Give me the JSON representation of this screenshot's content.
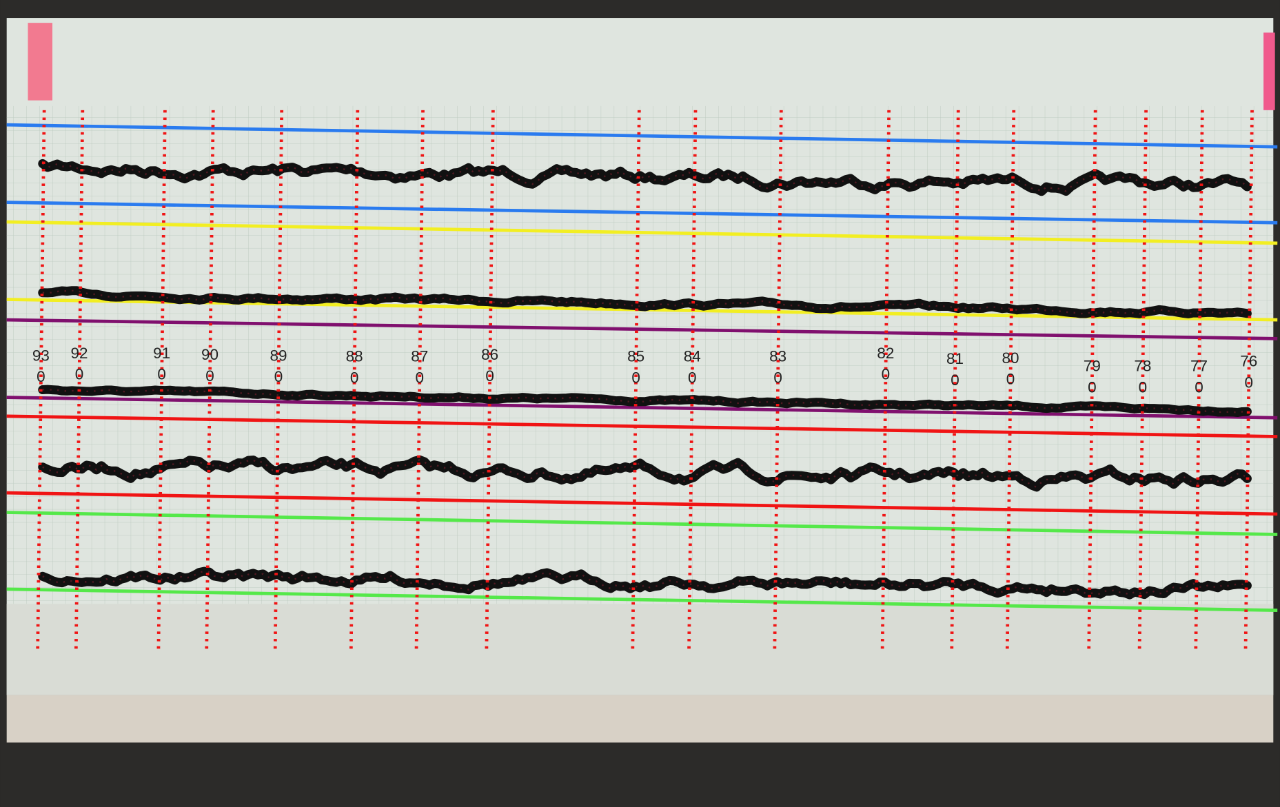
{
  "markers": [
    {
      "label": "93",
      "sub": "0"
    },
    {
      "label": "92",
      "sub": "0"
    },
    {
      "label": "91",
      "sub": "0"
    },
    {
      "label": "90",
      "sub": "0"
    },
    {
      "label": "89",
      "sub": "0"
    },
    {
      "label": "88",
      "sub": "0"
    },
    {
      "label": "87",
      "sub": "0"
    },
    {
      "label": "86",
      "sub": "0"
    },
    {
      "label": "85",
      "sub": "0"
    },
    {
      "label": "84",
      "sub": "0"
    },
    {
      "label": "83",
      "sub": "0"
    },
    {
      "label": "82",
      "sub": "0"
    },
    {
      "label": "81",
      "sub": "0"
    },
    {
      "label": "80",
      "sub": "0"
    },
    {
      "label": "79",
      "sub": "0"
    },
    {
      "label": "78",
      "sub": "0"
    },
    {
      "label": "77",
      "sub": "0"
    },
    {
      "label": "76",
      "sub": "0"
    }
  ]
}
